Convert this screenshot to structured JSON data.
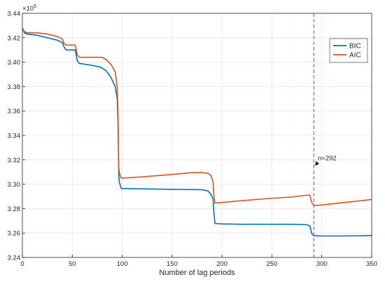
{
  "chart_data": {
    "type": "line",
    "title": "",
    "xlabel": "Number of lag periods",
    "ylabel": "",
    "xlim": [
      0,
      350
    ],
    "ylim": [
      3.24,
      3.44
    ],
    "y_exponent_label": "×10",
    "y_exponent_power": "5",
    "xticks": [
      0,
      50,
      100,
      150,
      200,
      250,
      300,
      350
    ],
    "yticks": [
      3.24,
      3.26,
      3.28,
      3.3,
      3.32,
      3.34,
      3.36,
      3.38,
      3.4,
      3.42,
      3.44
    ],
    "grid": true,
    "legend_position": "top-right",
    "series": [
      {
        "name": "BIC",
        "color": "#0072BD",
        "points": [
          [
            0,
            3.428
          ],
          [
            2,
            3.424
          ],
          [
            5,
            3.423
          ],
          [
            15,
            3.422
          ],
          [
            25,
            3.42
          ],
          [
            35,
            3.418
          ],
          [
            40,
            3.416
          ],
          [
            42,
            3.412
          ],
          [
            44,
            3.41
          ],
          [
            50,
            3.41
          ],
          [
            53,
            3.41
          ],
          [
            55,
            3.401
          ],
          [
            57,
            3.399
          ],
          [
            65,
            3.398
          ],
          [
            72,
            3.397
          ],
          [
            78,
            3.396
          ],
          [
            84,
            3.393
          ],
          [
            89,
            3.387
          ],
          [
            93,
            3.38
          ],
          [
            95,
            3.37
          ],
          [
            96,
            3.345
          ],
          [
            96.5,
            3.31
          ],
          [
            97,
            3.302
          ],
          [
            99,
            3.2965
          ],
          [
            120,
            3.2962
          ],
          [
            150,
            3.2958
          ],
          [
            180,
            3.2955
          ],
          [
            186,
            3.2945
          ],
          [
            189,
            3.2915
          ],
          [
            191,
            3.288
          ],
          [
            192,
            3.276
          ],
          [
            193,
            3.2678
          ],
          [
            200,
            3.2675
          ],
          [
            220,
            3.2672
          ],
          [
            250,
            3.2672
          ],
          [
            270,
            3.2672
          ],
          [
            285,
            3.2668
          ],
          [
            288,
            3.266
          ],
          [
            290,
            3.2595
          ],
          [
            292,
            3.2578
          ],
          [
            300,
            3.2576
          ],
          [
            320,
            3.2576
          ],
          [
            340,
            3.2578
          ],
          [
            350,
            3.258
          ]
        ]
      },
      {
        "name": "AIC",
        "color": "#D95319",
        "points": [
          [
            0,
            3.428
          ],
          [
            2,
            3.425
          ],
          [
            5,
            3.424
          ],
          [
            15,
            3.424
          ],
          [
            25,
            3.423
          ],
          [
            35,
            3.421
          ],
          [
            40,
            3.419
          ],
          [
            42,
            3.415
          ],
          [
            44,
            3.414
          ],
          [
            50,
            3.414
          ],
          [
            53,
            3.414
          ],
          [
            55,
            3.406
          ],
          [
            57,
            3.404
          ],
          [
            65,
            3.404
          ],
          [
            72,
            3.404
          ],
          [
            80,
            3.404
          ],
          [
            84,
            3.402
          ],
          [
            89,
            3.398
          ],
          [
            93,
            3.392
          ],
          [
            95,
            3.38
          ],
          [
            96,
            3.35
          ],
          [
            96.5,
            3.315
          ],
          [
            97,
            3.31
          ],
          [
            99,
            3.305
          ],
          [
            120,
            3.306
          ],
          [
            150,
            3.308
          ],
          [
            170,
            3.3095
          ],
          [
            180,
            3.3095
          ],
          [
            186,
            3.309
          ],
          [
            189,
            3.307
          ],
          [
            191,
            3.302
          ],
          [
            192,
            3.29
          ],
          [
            193,
            3.2845
          ],
          [
            200,
            3.285
          ],
          [
            220,
            3.2865
          ],
          [
            250,
            3.2885
          ],
          [
            270,
            3.2895
          ],
          [
            285,
            3.291
          ],
          [
            288,
            3.291
          ],
          [
            290,
            3.285
          ],
          [
            292,
            3.2825
          ],
          [
            300,
            3.283
          ],
          [
            320,
            3.2848
          ],
          [
            340,
            3.2865
          ],
          [
            350,
            3.2875
          ]
        ]
      }
    ],
    "vline": {
      "x": 292,
      "color": "#B44FD8"
    },
    "annotations": [
      {
        "text": "n=292",
        "x": 296,
        "y": 3.3195,
        "arrow_to": [
          292,
          3.3155
        ]
      }
    ]
  }
}
